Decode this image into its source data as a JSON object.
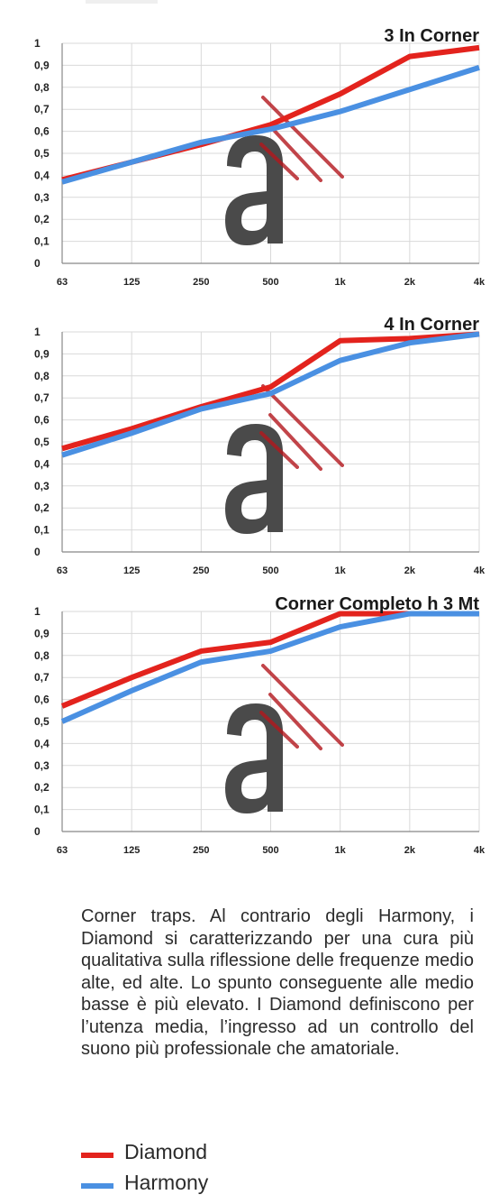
{
  "colors": {
    "diamond": "#e3231d",
    "harmony": "#4a90e2",
    "grid": "#d9d9d9",
    "axis": "#888888",
    "watermark": "#4a4a4a",
    "slash": "#b3171d"
  },
  "watermark": {
    "icon": "a-logo-watermark"
  },
  "chart_data": [
    {
      "type": "line",
      "title": "3  In Corner",
      "categories": [
        "63",
        "125",
        "250",
        "500",
        "1k",
        "2k",
        "4k"
      ],
      "yticks": [
        "1",
        "0,9",
        "0,8",
        "0,7",
        "0,6",
        "0,5",
        "0,4",
        "0,3",
        "0,2",
        "0,1",
        "0"
      ],
      "ylim": [
        0,
        1
      ],
      "grid": true,
      "series": [
        {
          "name": "Diamond",
          "color": "#e3231d",
          "values": [
            0.38,
            0.46,
            0.54,
            0.63,
            0.77,
            0.94,
            0.98
          ]
        },
        {
          "name": "Harmony",
          "color": "#4a90e2",
          "values": [
            0.37,
            0.46,
            0.55,
            0.61,
            0.69,
            0.79,
            0.89
          ]
        }
      ]
    },
    {
      "type": "line",
      "title": "4  In Corner",
      "categories": [
        "63",
        "125",
        "250",
        "500",
        "1k",
        "2k",
        "4k"
      ],
      "yticks": [
        "1",
        "0,9",
        "0,8",
        "0,7",
        "0,6",
        "0,5",
        "0,4",
        "0,3",
        "0,2",
        "0,1",
        "0"
      ],
      "ylim": [
        0,
        1
      ],
      "grid": true,
      "series": [
        {
          "name": "Diamond",
          "color": "#e3231d",
          "values": [
            0.47,
            0.56,
            0.66,
            0.75,
            0.96,
            0.97,
            0.99
          ]
        },
        {
          "name": "Harmony",
          "color": "#4a90e2",
          "values": [
            0.44,
            0.54,
            0.65,
            0.72,
            0.87,
            0.95,
            0.99
          ]
        }
      ]
    },
    {
      "type": "line",
      "title": "Corner Completo h 3 Mt",
      "categories": [
        "63",
        "125",
        "250",
        "500",
        "1k",
        "2k",
        "4k"
      ],
      "yticks": [
        "1",
        "0,9",
        "0,8",
        "0,7",
        "0,6",
        "0,5",
        "0,4",
        "0,3",
        "0,2",
        "0,1",
        "0"
      ],
      "ylim": [
        0,
        1
      ],
      "grid": true,
      "series": [
        {
          "name": "Diamond",
          "color": "#e3231d",
          "values": [
            0.57,
            0.7,
            0.82,
            0.86,
            0.99,
            0.99,
            0.99
          ]
        },
        {
          "name": "Harmony",
          "color": "#4a90e2",
          "values": [
            0.5,
            0.64,
            0.77,
            0.82,
            0.93,
            0.99,
            0.99
          ]
        }
      ]
    }
  ],
  "description": "Corner traps. Al contrario degli Harmony, i Diamond si caratterizzando per una cura più qualitativa sulla riflessione delle frequenze medio alte, ed alte. Lo spunto conseguente alle medio basse è più elevato. I Diamond definiscono per l’utenza media, l’ingresso ad un controllo del suono più professionale che amatoriale.",
  "legend": [
    {
      "label": "Diamond",
      "color": "#e3231d"
    },
    {
      "label": "Harmony",
      "color": "#4a90e2"
    }
  ]
}
